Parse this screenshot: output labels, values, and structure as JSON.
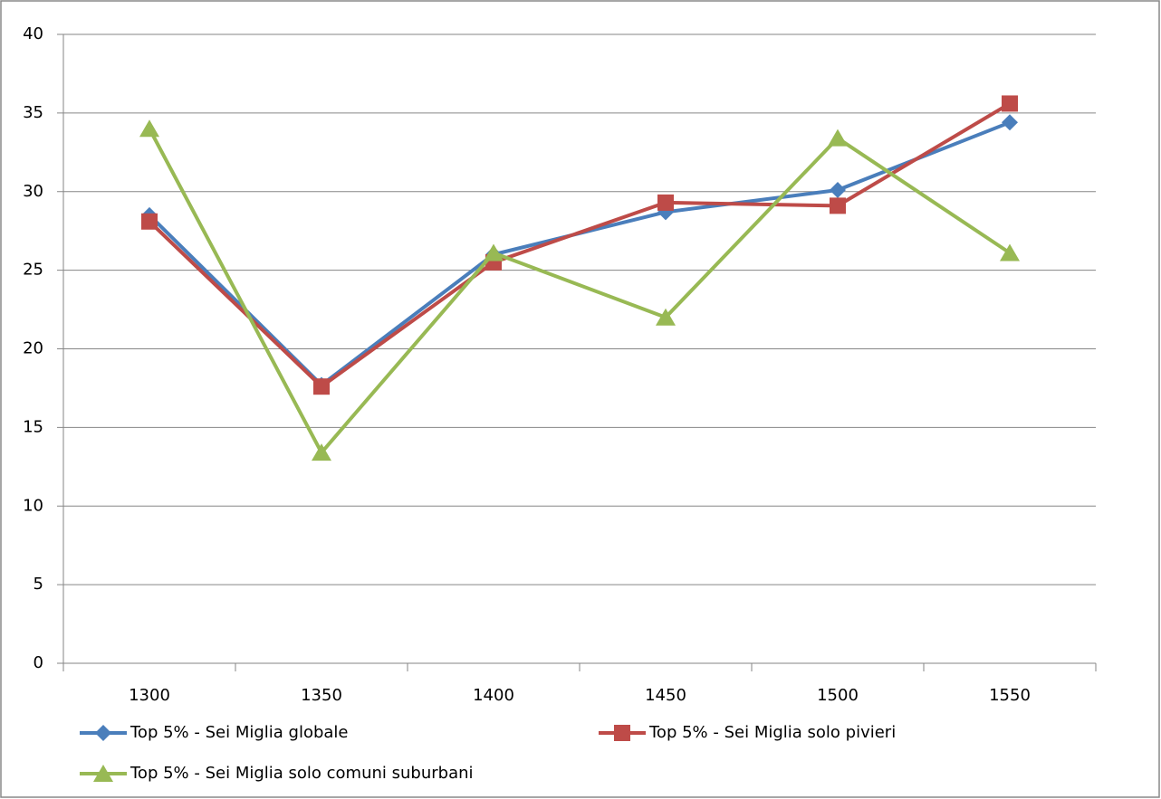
{
  "chart_data": {
    "type": "line",
    "categories": [
      "1300",
      "1350",
      "1400",
      "1450",
      "1500",
      "1550"
    ],
    "series": [
      {
        "name": "Top 5% - Sei Miglia globale",
        "color": "#4a7ebb",
        "marker": "diamond",
        "values": [
          28.5,
          17.7,
          26.0,
          28.7,
          30.1,
          34.4
        ]
      },
      {
        "name": "Top 5% - Sei Miglia solo pivieri",
        "color": "#be4b48",
        "marker": "square",
        "values": [
          28.1,
          17.6,
          25.5,
          29.3,
          29.1,
          35.6
        ]
      },
      {
        "name": "Top 5% - Sei Miglia solo comuni suburbani",
        "color": "#98b954",
        "marker": "triangle",
        "values": [
          34.0,
          13.4,
          26.1,
          22.0,
          33.4,
          26.1
        ]
      }
    ],
    "ylim": [
      0,
      40
    ],
    "yticks": [
      0,
      5,
      10,
      15,
      20,
      25,
      30,
      35,
      40
    ],
    "grid": true,
    "legend": "bottom"
  }
}
